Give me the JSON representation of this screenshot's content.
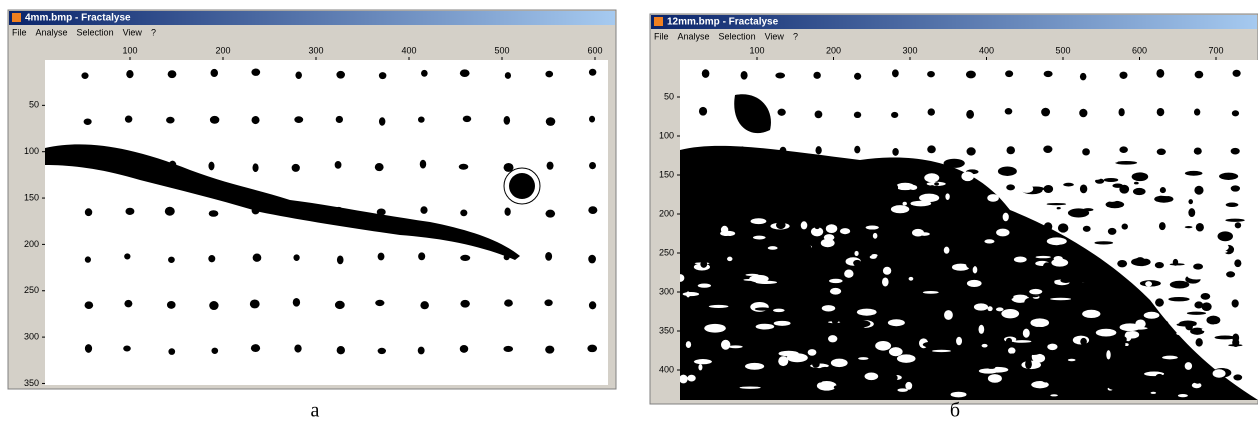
{
  "windows": [
    {
      "title": "4mm.bmp - Fractalyse",
      "menu": [
        "File",
        "Analyse",
        "Selection",
        "View",
        "?"
      ],
      "xticks": [
        100,
        200,
        300,
        400,
        500,
        600
      ],
      "yticks": [
        50,
        100,
        150,
        200,
        250,
        300,
        350
      ],
      "caption": "а"
    },
    {
      "title": "12mm.bmp - Fractalyse",
      "menu": [
        "File",
        "Analyse",
        "Selection",
        "View",
        "?"
      ],
      "xticks": [
        100,
        200,
        300,
        400,
        500,
        600,
        700
      ],
      "yticks": [
        50,
        100,
        150,
        200,
        250,
        300,
        350,
        400
      ],
      "caption": "б"
    }
  ]
}
